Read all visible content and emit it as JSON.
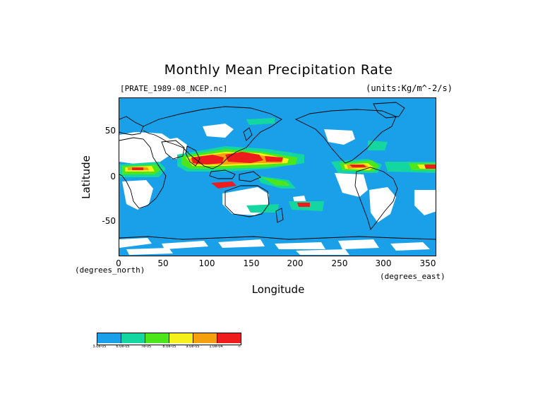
{
  "title": "Monthly Mean Precipitation Rate",
  "file": "[PRATE_1989-08_NCEP.nc]",
  "units": "(units:Kg/m^-2/s)",
  "axes": {
    "ylabel": "Latitude",
    "xlabel": "Longitude",
    "y_units": "(degrees_north)",
    "x_units": "(degrees_east)",
    "y_ticks": [
      "50",
      "0",
      "-50"
    ],
    "x_ticks": [
      "0",
      "50",
      "100",
      "150",
      "200",
      "250",
      "300",
      "350"
    ],
    "x_range": [
      0,
      360
    ],
    "y_range": [
      -90,
      90
    ]
  },
  "legend": {
    "colors": [
      "#1aa0e8",
      "#14d6a0",
      "#4ce61a",
      "#f6f01a",
      "#f5a00e",
      "#ee1c1c"
    ],
    "ticks": [
      "3.0e-05",
      "6.0e-05",
      "7e-05",
      "8.0e-05",
      "9.0e-05",
      "1.0e-04",
      "∞"
    ]
  },
  "map_colors": {
    "ocean": "#1aa0e8",
    "dry": "#ffffff",
    "cyan": "#14d6a0",
    "green": "#4ce61a",
    "yellow": "#f6f01a",
    "orange": "#f5a00e",
    "red": "#ee1c1c",
    "coast": "#000000"
  }
}
